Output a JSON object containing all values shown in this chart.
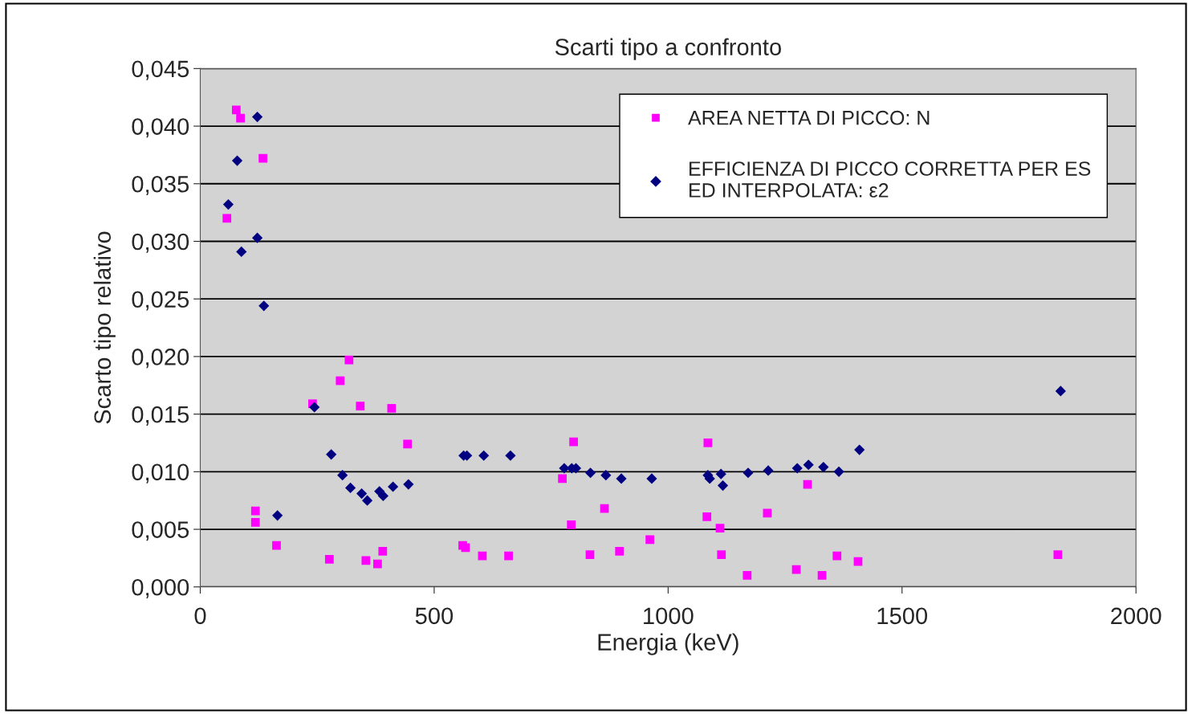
{
  "chart_data": {
    "type": "scatter",
    "title": "Scarti tipo a confronto",
    "xlabel": "Energia (keV)",
    "ylabel": "Scarto tipo relativo",
    "xlim": [
      0,
      2000
    ],
    "xticks": [
      0,
      500,
      1000,
      1500,
      2000
    ],
    "ylim": [
      0,
      0.045
    ],
    "yticks": [
      {
        "value": 0,
        "label": "0,000"
      },
      {
        "value": 0.005,
        "label": "0,005"
      },
      {
        "value": 0.01,
        "label": "0,010"
      },
      {
        "value": 0.015,
        "label": "0,015"
      },
      {
        "value": 0.02,
        "label": "0,020"
      },
      {
        "value": 0.025,
        "label": "0,025"
      },
      {
        "value": 0.03,
        "label": "0,030"
      },
      {
        "value": 0.035,
        "label": "0,035"
      },
      {
        "value": 0.04,
        "label": "0,040"
      },
      {
        "value": 0.045,
        "label": "0,045"
      }
    ],
    "grid": "y",
    "legend": "top right",
    "series": [
      {
        "name": "AREA NETTA DI PICCO: N",
        "color": "#ff00ff",
        "marker": "square",
        "x": [
          77,
          86,
          134,
          57,
          118,
          118,
          163,
          240,
          299,
          318,
          342,
          409,
          443,
          276,
          354,
          379,
          390,
          561,
          567,
          603,
          659,
          774,
          798,
          793,
          864,
          833,
          896,
          961,
          1085,
          1083,
          1111,
          1114,
          1169,
          1212,
          1274,
          1298,
          1329,
          1361,
          1406,
          1833
        ],
        "values": [
          0.0414,
          0.0407,
          0.0372,
          0.032,
          0.0066,
          0.0056,
          0.0036,
          0.0159,
          0.0179,
          0.0197,
          0.0157,
          0.0155,
          0.0124,
          0.0024,
          0.0023,
          0.002,
          0.0031,
          0.0036,
          0.0034,
          0.0027,
          0.0027,
          0.0094,
          0.0126,
          0.0054,
          0.0068,
          0.0028,
          0.0031,
          0.0041,
          0.0125,
          0.0061,
          0.0051,
          0.0028,
          0.001,
          0.0064,
          0.0015,
          0.0089,
          0.001,
          0.0027,
          0.0022,
          0.0028
        ]
      },
      {
        "name": "EFFICIENZA DI PICCO CORRETTA PER ES\nED INTERPOLATA: ε2",
        "color": "#000080",
        "marker": "diamond",
        "x": [
          122,
          79,
          60,
          122,
          88,
          136,
          244,
          165,
          280,
          304,
          321,
          345,
          357,
          383,
          391,
          412,
          445,
          563,
          570,
          606,
          663,
          778,
          794,
          803,
          834,
          867,
          900,
          965,
          1085,
          1089,
          1113,
          1117,
          1171,
          1214,
          1276,
          1300,
          1332,
          1365,
          1409,
          1839
        ],
        "values": [
          0.0408,
          0.037,
          0.0332,
          0.0303,
          0.0291,
          0.0244,
          0.0156,
          0.0062,
          0.0115,
          0.0097,
          0.0086,
          0.0081,
          0.0075,
          0.0083,
          0.0079,
          0.0087,
          0.0089,
          0.0114,
          0.0114,
          0.0114,
          0.0114,
          0.0103,
          0.0103,
          0.0103,
          0.0099,
          0.0097,
          0.0094,
          0.0094,
          0.0097,
          0.0094,
          0.0098,
          0.0088,
          0.0099,
          0.0101,
          0.0103,
          0.0106,
          0.0104,
          0.01,
          0.0119,
          0.017
        ]
      }
    ]
  }
}
